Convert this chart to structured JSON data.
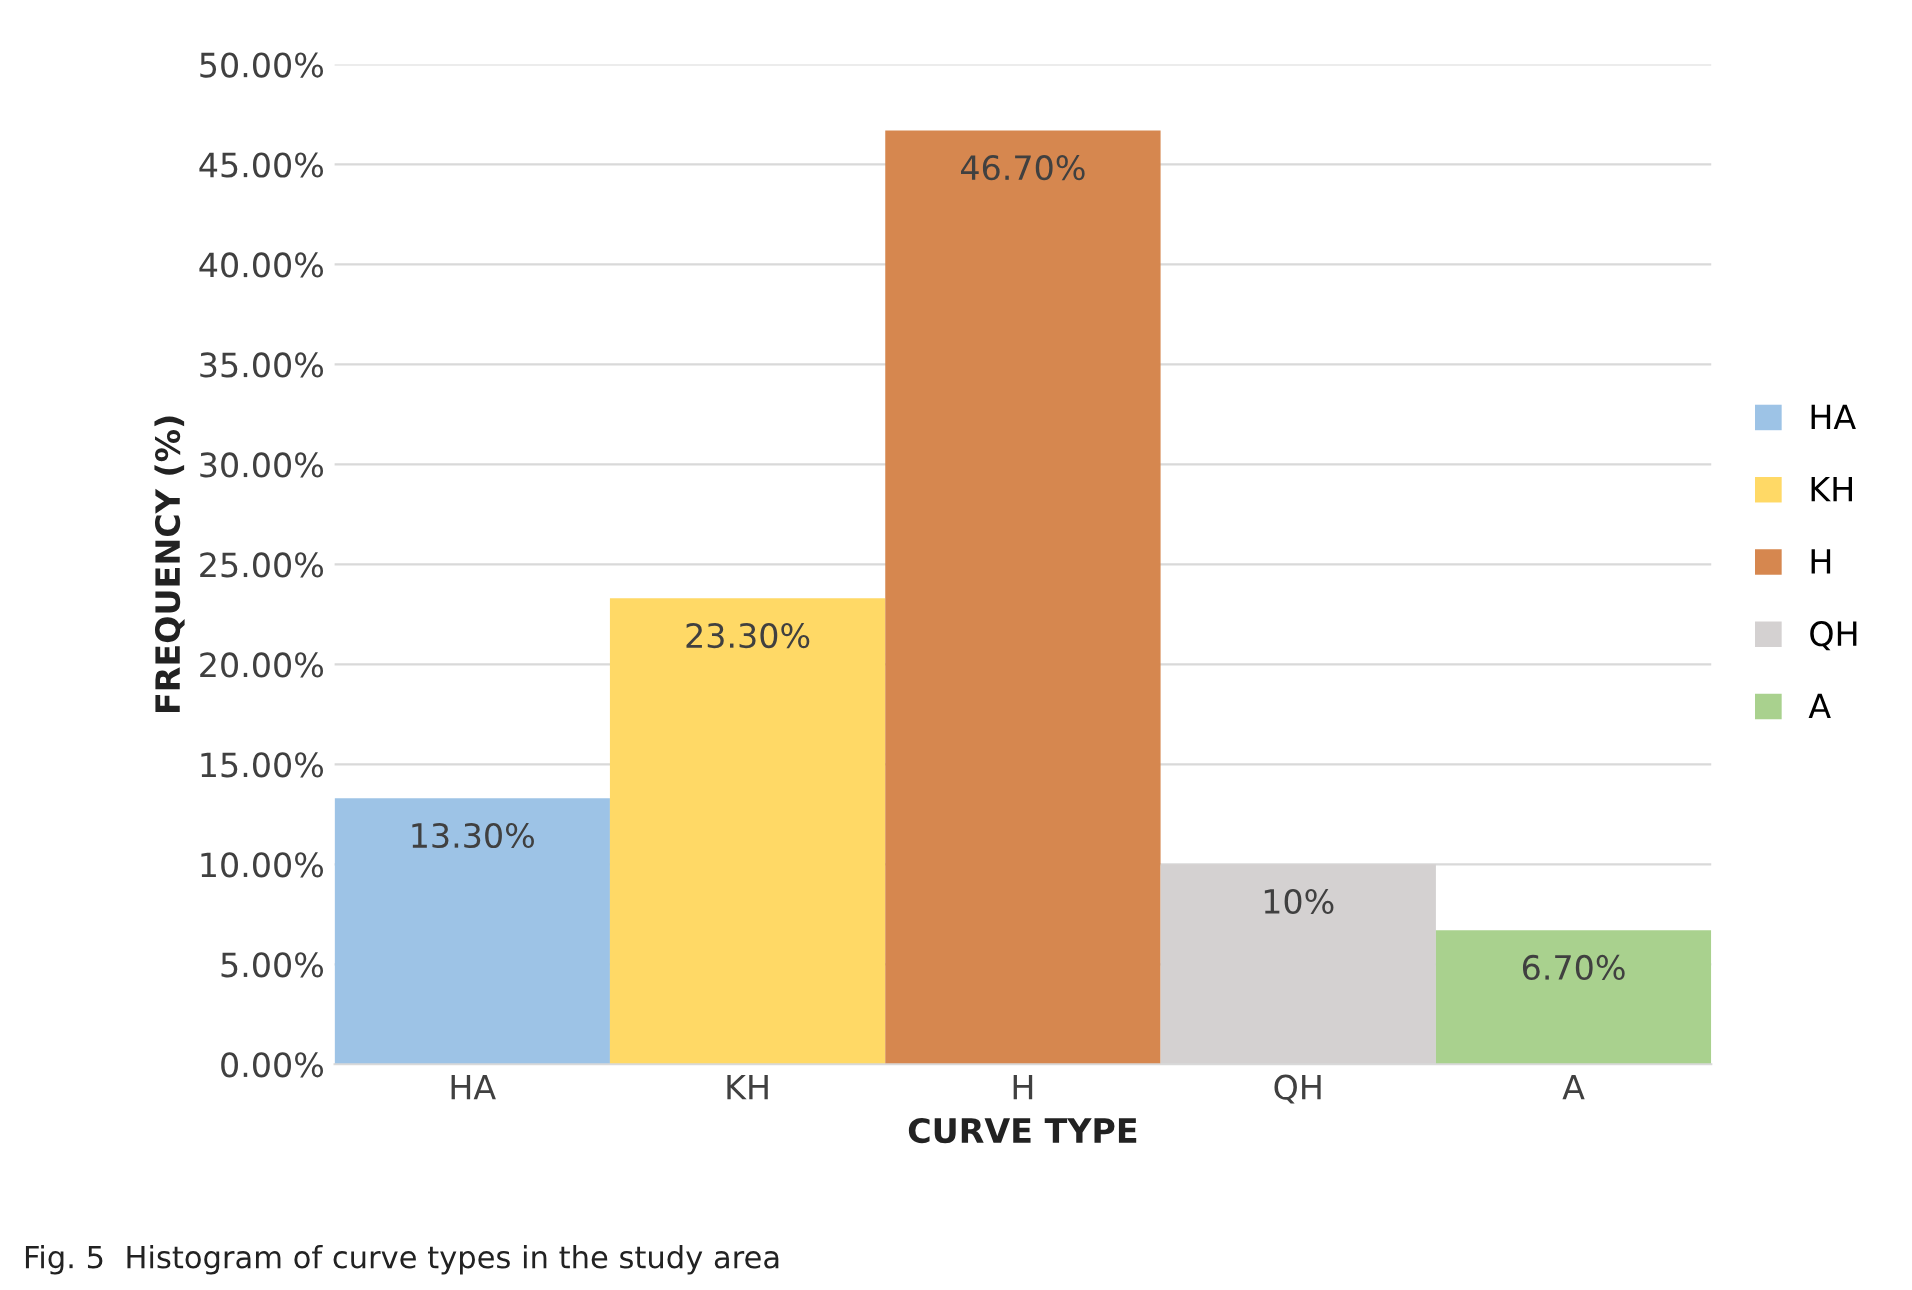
{
  "chart_data": {
    "type": "bar",
    "xlabel": "CURVE TYPE",
    "ylabel": "FREQUENCY (%)",
    "categories": [
      "HA",
      "KH",
      "H",
      "QH",
      "A"
    ],
    "series": [
      {
        "name": "HA",
        "color": "#9dc3e6",
        "values": [
          13.3,
          null,
          null,
          null,
          null
        ],
        "value_labels": [
          "13.30%",
          null,
          null,
          null,
          null
        ]
      },
      {
        "name": "KH",
        "color": "#ffd966",
        "values": [
          null,
          23.3,
          null,
          null,
          null
        ],
        "value_labels": [
          null,
          "23.30%",
          null,
          null,
          null
        ]
      },
      {
        "name": "H",
        "color": "#d6874f",
        "values": [
          null,
          null,
          46.7,
          null,
          null
        ],
        "value_labels": [
          null,
          null,
          "46.70%",
          null,
          null
        ]
      },
      {
        "name": "QH",
        "color": "#d4d1d1",
        "values": [
          null,
          null,
          null,
          10,
          null
        ],
        "value_labels": [
          null,
          null,
          null,
          "10%",
          null
        ]
      },
      {
        "name": "A",
        "color": "#a9d18e",
        "values": [
          null,
          null,
          null,
          null,
          6.7
        ],
        "value_labels": [
          null,
          null,
          null,
          null,
          "6.70%"
        ]
      }
    ],
    "ylim": [
      0,
      50
    ],
    "yticks": [
      {
        "value": 0,
        "label": "0.00%"
      },
      {
        "value": 5,
        "label": "5.00%"
      },
      {
        "value": 10,
        "label": "10.00%"
      },
      {
        "value": 15,
        "label": "15.00%"
      },
      {
        "value": 20,
        "label": "20.00%"
      },
      {
        "value": 25,
        "label": "25.00%"
      },
      {
        "value": 30,
        "label": "30.00%"
      },
      {
        "value": 35,
        "label": "35.00%"
      },
      {
        "value": 40,
        "label": "40.00%"
      },
      {
        "value": 45,
        "label": "45.00%"
      },
      {
        "value": 50,
        "label": "50.00%"
      }
    ],
    "grid": "y",
    "legend": "right",
    "annotations": [
      "Fig. 5  Histogram of curve types in the study area"
    ]
  }
}
